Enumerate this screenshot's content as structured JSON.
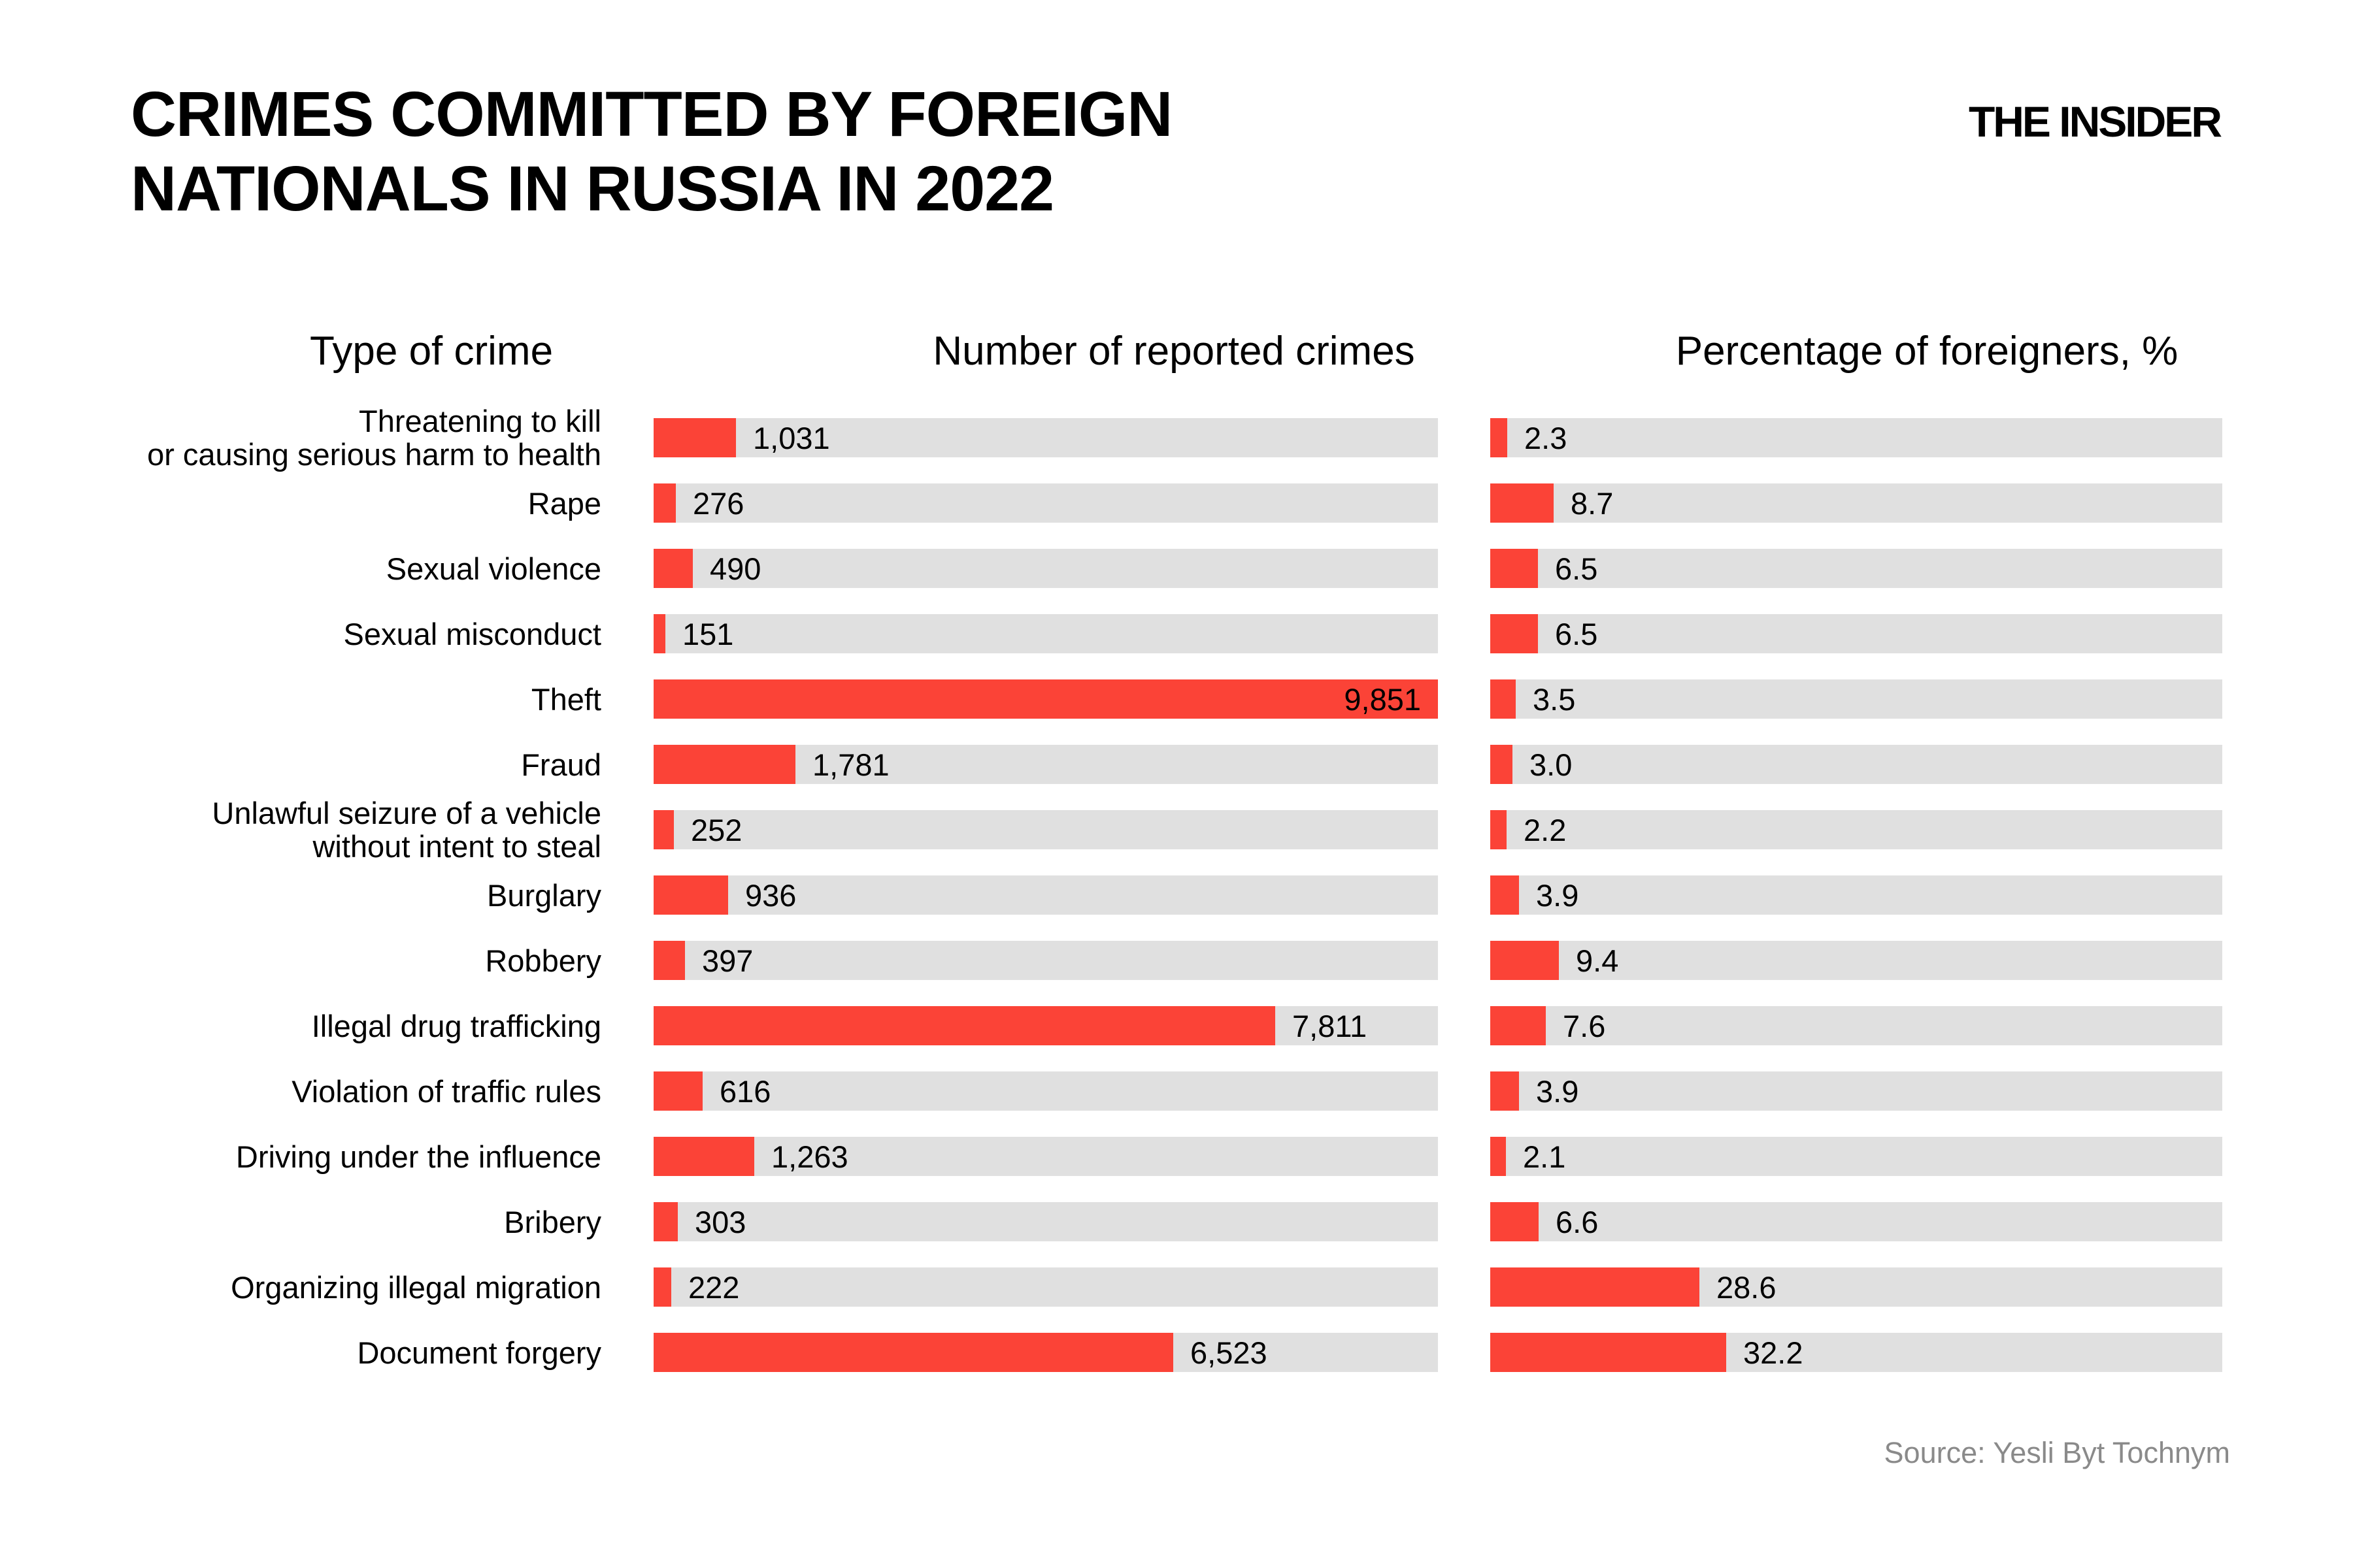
{
  "header": {
    "title": "CRIMES COMMITTED BY FOREIGN\nNATIONALS IN RUSSIA IN 2022",
    "brand": "THE INSIDER"
  },
  "columns": {
    "type_label": "Type of crime",
    "number_label": "Number of reported crimes",
    "percentage_label": "Percentage of foreigners, %"
  },
  "source": "Source: Yesli Byt Tochnym",
  "colors": {
    "bar": "#fb4337",
    "track": "#e0e0e0",
    "text": "#000000",
    "source_text": "#8a8a8a",
    "background": "#ffffff"
  },
  "rows": [
    {
      "label": "Threatening to kill\nor causing serious harm to health",
      "num": "1,031",
      "pct": "2.3"
    },
    {
      "label": "Rape",
      "num": "276",
      "pct": "8.7"
    },
    {
      "label": "Sexual violence",
      "num": "490",
      "pct": "6.5"
    },
    {
      "label": "Sexual misconduct",
      "num": "151",
      "pct": "6.5"
    },
    {
      "label": "Theft",
      "num": "9,851",
      "pct": "3.5"
    },
    {
      "label": "Fraud",
      "num": "1,781",
      "pct": "3.0"
    },
    {
      "label": "Unlawful seizure of a vehicle\nwithout intent to steal",
      "num": "252",
      "pct": "2.2"
    },
    {
      "label": "Burglary",
      "num": "936",
      "pct": "3.9"
    },
    {
      "label": "Robbery",
      "num": "397",
      "pct": "9.4"
    },
    {
      "label": "Illegal drug trafficking",
      "num": "7,811",
      "pct": "7.6"
    },
    {
      "label": "Violation of traffic rules",
      "num": "616",
      "pct": "3.9"
    },
    {
      "label": "Driving under the influence",
      "num": "1,263",
      "pct": "2.1"
    },
    {
      "label": "Bribery",
      "num": "303",
      "pct": "6.6"
    },
    {
      "label": "Organizing illegal migration",
      "num": "222",
      "pct": "28.6"
    },
    {
      "label": "Document forgery",
      "num": "6,523",
      "pct": "32.2"
    }
  ],
  "chart_data": {
    "type": "bar",
    "orientation": "horizontal",
    "title": "CRIMES COMMITTED BY FOREIGN NATIONALS IN RUSSIA IN 2022",
    "categories": [
      "Threatening to kill or causing serious harm to health",
      "Rape",
      "Sexual violence",
      "Sexual misconduct",
      "Theft",
      "Fraud",
      "Unlawful seizure of a vehicle without intent to steal",
      "Burglary",
      "Robbery",
      "Illegal drug trafficking",
      "Violation of traffic rules",
      "Driving under the influence",
      "Bribery",
      "Organizing illegal migration",
      "Document forgery"
    ],
    "series": [
      {
        "name": "Number of reported crimes",
        "values": [
          1031,
          276,
          490,
          151,
          9851,
          1781,
          252,
          936,
          397,
          7811,
          616,
          1263,
          303,
          222,
          6523
        ],
        "axis_max": 9851
      },
      {
        "name": "Percentage of foreigners, %",
        "values": [
          2.3,
          8.7,
          6.5,
          6.5,
          3.5,
          3.0,
          2.2,
          3.9,
          9.4,
          7.6,
          3.9,
          2.1,
          6.6,
          28.6,
          32.2
        ],
        "axis_max": 100
      }
    ],
    "legend_position": "none",
    "grid": false,
    "bar_color": "#fb4337",
    "track_color": "#e0e0e0",
    "source": "Source: Yesli Byt Tochnym"
  }
}
